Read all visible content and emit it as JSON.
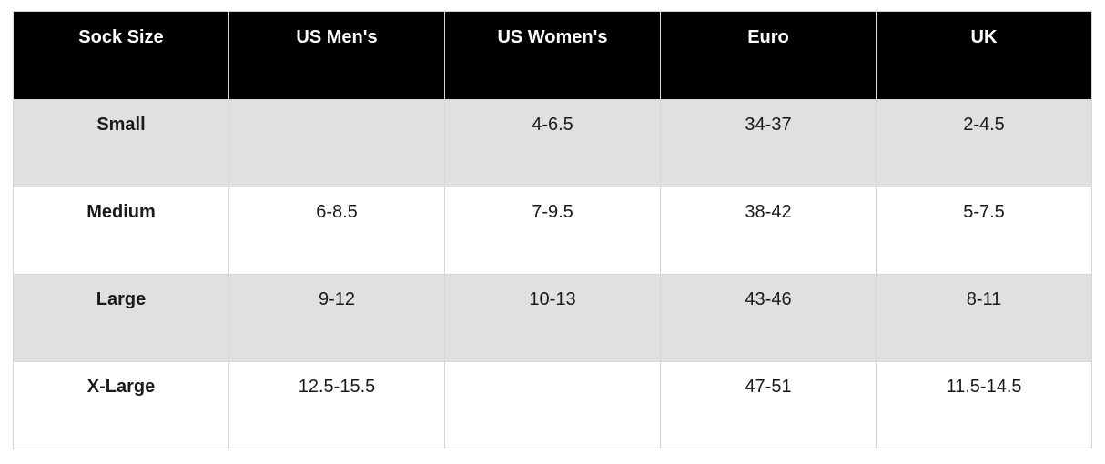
{
  "chart_data": {
    "type": "table",
    "columns": [
      "Sock Size",
      "US Men's",
      "US Women's",
      "Euro",
      "UK"
    ],
    "rows": [
      {
        "label": "Small",
        "values": [
          "",
          "4-6.5",
          "34-37",
          "2-4.5"
        ]
      },
      {
        "label": "Medium",
        "values": [
          "6-8.5",
          "7-9.5",
          "38-42",
          "5-7.5"
        ]
      },
      {
        "label": "Large",
        "values": [
          "9-12",
          "10-13",
          "43-46",
          "8-11"
        ]
      },
      {
        "label": "X-Large",
        "values": [
          "12.5-15.5",
          "",
          "47-51",
          "11.5-14.5"
        ]
      }
    ],
    "colors": {
      "header_bg": "#000000",
      "header_text": "#ffffff",
      "alt_row_bg": "#e0e0e0",
      "row_bg": "#ffffff",
      "grid_border": "#d6d6d6",
      "body_text": "#1a1a1a"
    }
  }
}
